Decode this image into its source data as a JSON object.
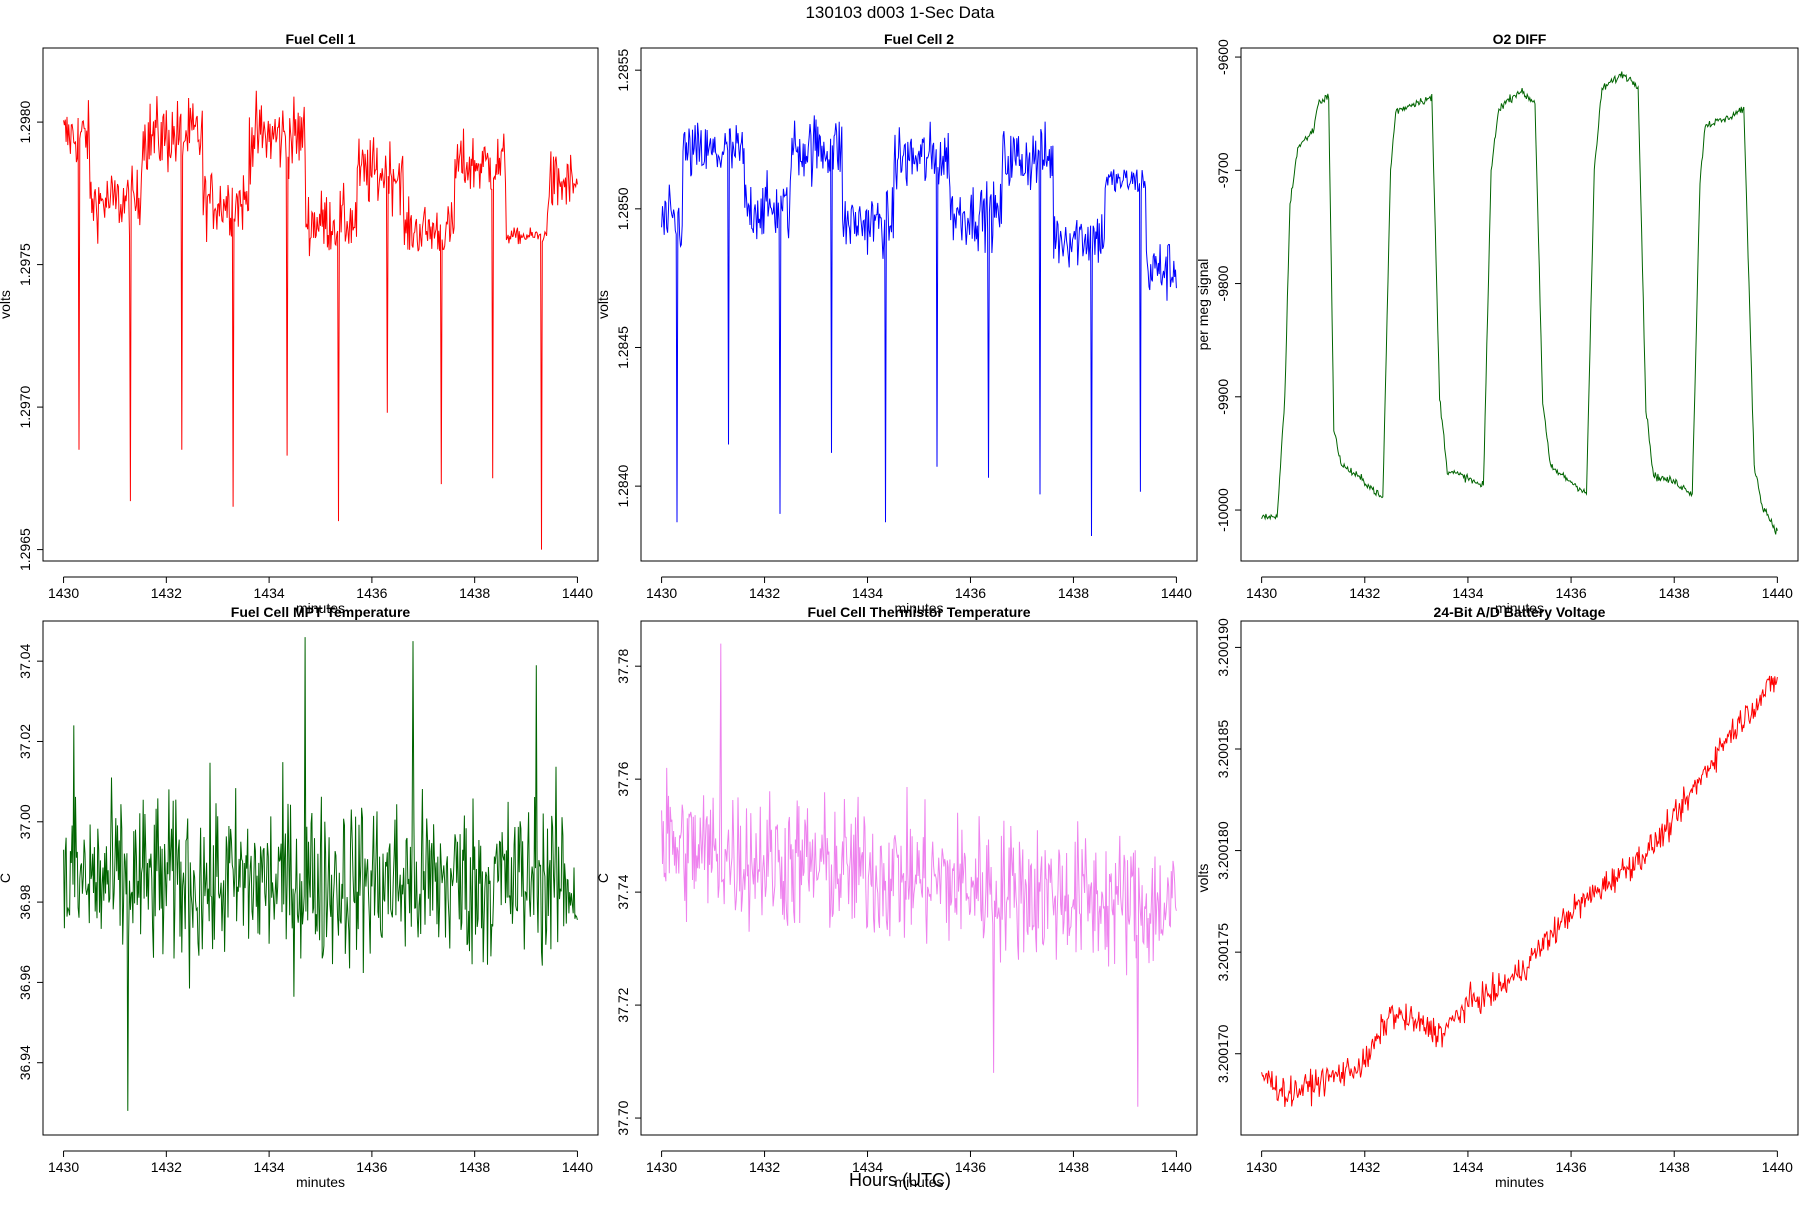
{
  "figure": {
    "title": "130103    d003    1-Sec Data",
    "bottom_label": "Hours (UTC)"
  },
  "chart_data": [
    {
      "type": "line",
      "title": "Fuel Cell 1",
      "xlabel": "minutes",
      "ylabel": "volts",
      "color": "#ff0000",
      "xlim": [
        1429.6,
        1440.4
      ],
      "ylim": [
        1.29646,
        1.29826
      ],
      "xticks": [
        1430,
        1432,
        1434,
        1436,
        1438,
        1440
      ],
      "yticks": [
        1.2965,
        1.297,
        1.2975,
        1.298
      ],
      "ytick_labels": [
        "1.2965",
        "1.2970",
        "1.2975",
        "1.2980"
      ],
      "x_range": [
        1430.0,
        1440.0
      ],
      "segments": [
        {
          "from": 1430.0,
          "to": 1430.5,
          "level": 1.29795,
          "noise": 0.00012
        },
        {
          "from": 1430.5,
          "to": 1431.5,
          "level": 1.29772,
          "noise": 0.00012
        },
        {
          "from": 1431.5,
          "to": 1432.7,
          "level": 1.29795,
          "noise": 0.00014
        },
        {
          "from": 1432.7,
          "to": 1433.6,
          "level": 1.29772,
          "noise": 0.00012
        },
        {
          "from": 1433.6,
          "to": 1434.7,
          "level": 1.29795,
          "noise": 0.00014
        },
        {
          "from": 1434.7,
          "to": 1435.7,
          "level": 1.29765,
          "noise": 0.00012
        },
        {
          "from": 1435.7,
          "to": 1436.6,
          "level": 1.29782,
          "noise": 0.00013
        },
        {
          "from": 1436.6,
          "to": 1437.6,
          "level": 1.29762,
          "noise": 0.0001
        },
        {
          "from": 1437.6,
          "to": 1438.6,
          "level": 1.29785,
          "noise": 0.00012
        },
        {
          "from": 1438.6,
          "to": 1439.4,
          "level": 1.2976,
          "noise": 3e-05
        },
        {
          "from": 1439.4,
          "to": 1440.0,
          "level": 1.29778,
          "noise": 0.00012
        }
      ],
      "spikes": [
        [
          1430.3,
          1.29685
        ],
        [
          1431.3,
          1.29667
        ],
        [
          1432.3,
          1.29685
        ],
        [
          1433.3,
          1.29665
        ],
        [
          1434.35,
          1.29683
        ],
        [
          1435.35,
          1.2966
        ],
        [
          1436.3,
          1.29698
        ],
        [
          1437.35,
          1.29673
        ],
        [
          1438.35,
          1.29675
        ],
        [
          1439.3,
          1.2965
        ]
      ]
    },
    {
      "type": "line",
      "title": "Fuel Cell 2",
      "xlabel": "minutes",
      "ylabel": "volts",
      "color": "#0000ff",
      "xlim": [
        1429.6,
        1440.4
      ],
      "ylim": [
        1.28373,
        1.28558
      ],
      "xticks": [
        1430,
        1432,
        1434,
        1436,
        1438,
        1440
      ],
      "yticks": [
        1.284,
        1.2845,
        1.285,
        1.2855
      ],
      "ytick_labels": [
        "1.2840",
        "1.2845",
        "1.2850",
        "1.2855"
      ],
      "x_range": [
        1430.0,
        1440.0
      ],
      "segments": [
        {
          "from": 1430.0,
          "to": 1430.4,
          "level": 1.28495,
          "noise": 0.00012
        },
        {
          "from": 1430.4,
          "to": 1431.6,
          "level": 1.2852,
          "noise": 0.00012
        },
        {
          "from": 1431.6,
          "to": 1432.5,
          "level": 1.285,
          "noise": 0.00012
        },
        {
          "from": 1432.5,
          "to": 1433.5,
          "level": 1.28522,
          "noise": 0.00013
        },
        {
          "from": 1433.5,
          "to": 1434.5,
          "level": 1.28495,
          "noise": 0.00012
        },
        {
          "from": 1434.5,
          "to": 1435.6,
          "level": 1.28518,
          "noise": 0.00013
        },
        {
          "from": 1435.6,
          "to": 1436.6,
          "level": 1.28498,
          "noise": 0.00012
        },
        {
          "from": 1436.6,
          "to": 1437.6,
          "level": 1.28518,
          "noise": 0.00013
        },
        {
          "from": 1437.6,
          "to": 1438.6,
          "level": 1.2849,
          "noise": 0.00012
        },
        {
          "from": 1438.6,
          "to": 1439.4,
          "level": 1.2851,
          "noise": 6e-05
        },
        {
          "from": 1439.4,
          "to": 1440.0,
          "level": 1.28478,
          "noise": 0.00012
        }
      ],
      "spikes": [
        [
          1430.3,
          1.28387
        ],
        [
          1431.3,
          1.28415
        ],
        [
          1432.3,
          1.2839
        ],
        [
          1433.3,
          1.28412
        ],
        [
          1434.35,
          1.28387
        ],
        [
          1435.35,
          1.28407
        ],
        [
          1436.35,
          1.28403
        ],
        [
          1437.35,
          1.28397
        ],
        [
          1438.35,
          1.28382
        ],
        [
          1439.3,
          1.28398
        ]
      ]
    },
    {
      "type": "line",
      "title": "O2 DIFF",
      "xlabel": "minutes",
      "ylabel": "per meg signal",
      "color": "#006400",
      "xlim": [
        1429.6,
        1440.4
      ],
      "ylim": [
        -10045,
        -9592
      ],
      "xticks": [
        1430,
        1432,
        1434,
        1436,
        1438,
        1440
      ],
      "yticks": [
        -10000,
        -9900,
        -9800,
        -9700,
        -9600
      ],
      "ytick_labels": [
        "-10000",
        "-9900",
        "-9800",
        "-9700",
        "-9600"
      ],
      "x_range": [
        1430.0,
        1440.0
      ],
      "levels": [
        [
          1430.0,
          -10005
        ],
        [
          1430.3,
          -10008
        ],
        [
          1430.45,
          -9900
        ],
        [
          1430.55,
          -9730
        ],
        [
          1430.7,
          -9680
        ],
        [
          1431.0,
          -9665
        ],
        [
          1431.1,
          -9640
        ],
        [
          1431.3,
          -9635
        ],
        [
          1431.4,
          -9930
        ],
        [
          1431.55,
          -9960
        ],
        [
          1432.0,
          -9975
        ],
        [
          1432.35,
          -9990
        ],
        [
          1432.5,
          -9700
        ],
        [
          1432.6,
          -9648
        ],
        [
          1433.0,
          -9640
        ],
        [
          1433.3,
          -9636
        ],
        [
          1433.45,
          -9900
        ],
        [
          1433.6,
          -9965
        ],
        [
          1434.0,
          -9972
        ],
        [
          1434.3,
          -9980
        ],
        [
          1434.45,
          -9700
        ],
        [
          1434.6,
          -9645
        ],
        [
          1435.0,
          -9630
        ],
        [
          1435.3,
          -9640
        ],
        [
          1435.45,
          -9905
        ],
        [
          1435.6,
          -9962
        ],
        [
          1436.0,
          -9975
        ],
        [
          1436.3,
          -9985
        ],
        [
          1436.45,
          -9700
        ],
        [
          1436.6,
          -9628
        ],
        [
          1437.0,
          -9615
        ],
        [
          1437.3,
          -9625
        ],
        [
          1437.45,
          -9910
        ],
        [
          1437.6,
          -9970
        ],
        [
          1438.0,
          -9975
        ],
        [
          1438.35,
          -9985
        ],
        [
          1438.5,
          -9710
        ],
        [
          1438.6,
          -9660
        ],
        [
          1439.0,
          -9655
        ],
        [
          1439.35,
          -9645
        ],
        [
          1439.55,
          -9960
        ],
        [
          1439.7,
          -9995
        ],
        [
          1440.0,
          -10020
        ]
      ]
    },
    {
      "type": "line",
      "title": "Fuel Cell MPT Temperature",
      "xlabel": "minutes",
      "ylabel": "C",
      "color": "#006400",
      "xlim": [
        1429.6,
        1440.4
      ],
      "ylim": [
        36.922,
        37.05
      ],
      "xticks": [
        1430,
        1432,
        1434,
        1436,
        1438,
        1440
      ],
      "yticks": [
        36.94,
        36.96,
        36.98,
        37.0,
        37.02,
        37.04
      ],
      "ytick_labels": [
        "36.94",
        "36.96",
        "36.98",
        "37.00",
        "37.02",
        "37.04"
      ],
      "x_range": [
        1430.0,
        1440.0
      ],
      "mean": 36.985,
      "spread": 0.028,
      "extremes": [
        [
          1431.25,
          36.928
        ],
        [
          1434.7,
          37.046
        ],
        [
          1436.8,
          37.045
        ],
        [
          1439.2,
          37.039
        ],
        [
          1430.2,
          37.024
        ]
      ]
    },
    {
      "type": "line",
      "title": "Fuel Cell Thermistor Temperature",
      "xlabel": "minutes",
      "ylabel": "C",
      "color": "#ee82ee",
      "xlim": [
        1429.6,
        1440.4
      ],
      "ylim": [
        37.697,
        37.788
      ],
      "xticks": [
        1430,
        1432,
        1434,
        1436,
        1438,
        1440
      ],
      "yticks": [
        37.7,
        37.72,
        37.74,
        37.76,
        37.78
      ],
      "ytick_labels": [
        "37.70",
        "37.72",
        "37.74",
        "37.76",
        "37.78"
      ],
      "x_range": [
        1430.0,
        1440.0
      ],
      "mean_start": 37.748,
      "mean_end": 37.737,
      "spread": 0.016,
      "extremes": [
        [
          1431.15,
          37.784
        ],
        [
          1439.25,
          37.702
        ],
        [
          1436.45,
          37.708
        ],
        [
          1430.1,
          37.762
        ]
      ]
    },
    {
      "type": "line",
      "title": "24-Bit A/D Battery Voltage",
      "xlabel": "minutes",
      "ylabel": "volts",
      "color": "#ff0000",
      "xlim": [
        1429.6,
        1440.4
      ],
      "ylim": [
        3.200166,
        3.2001913
      ],
      "xticks": [
        1430,
        1432,
        1434,
        1436,
        1438,
        1440
      ],
      "yticks": [
        3.20017,
        3.200175,
        3.20018,
        3.200185,
        3.20019
      ],
      "ytick_labels": [
        "3.200170",
        "3.200175",
        "3.200180",
        "3.200185",
        "3.200190"
      ],
      "x_range": [
        1430.0,
        1440.0
      ],
      "trend": [
        [
          1430.0,
          3.200169
        ],
        [
          1430.5,
          3.200168
        ],
        [
          1431.0,
          3.2001685
        ],
        [
          1431.5,
          3.200169
        ],
        [
          1432.0,
          3.2001695
        ],
        [
          1432.5,
          3.200172
        ],
        [
          1433.0,
          3.2001715
        ],
        [
          1433.5,
          3.200171
        ],
        [
          1434.0,
          3.2001725
        ],
        [
          1434.5,
          3.200173
        ],
        [
          1435.0,
          3.200174
        ],
        [
          1435.5,
          3.2001755
        ],
        [
          1436.0,
          3.200177
        ],
        [
          1436.5,
          3.200178
        ],
        [
          1437.0,
          3.200179
        ],
        [
          1437.5,
          3.20018
        ],
        [
          1438.0,
          3.2001815
        ],
        [
          1438.5,
          3.2001835
        ],
        [
          1439.0,
          3.2001855
        ],
        [
          1439.5,
          3.200187
        ],
        [
          1440.0,
          3.2001885
        ]
      ],
      "noise": 8e-07
    }
  ]
}
